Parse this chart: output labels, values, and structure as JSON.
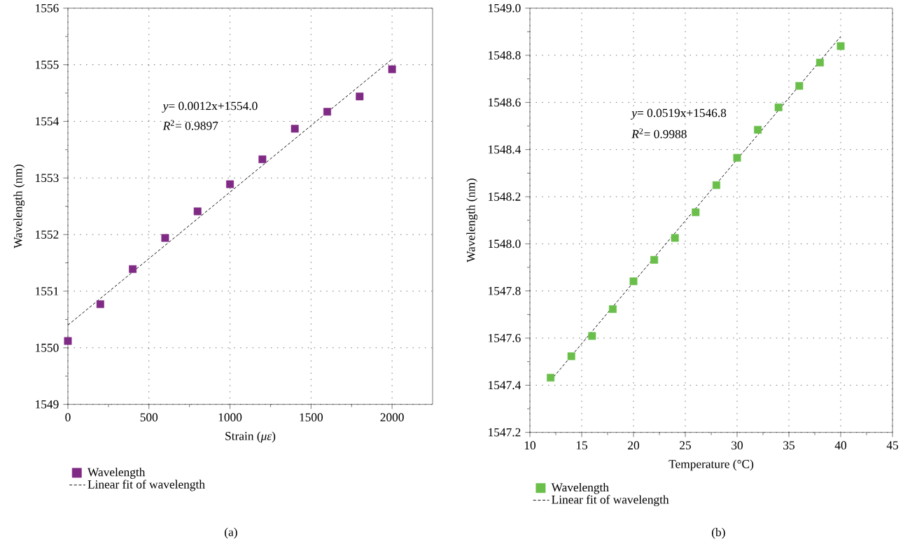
{
  "chart_data": [
    {
      "type": "scatter",
      "xlabel": "Strain (*με*)",
      "ylabel": "Wavelength (nm)",
      "xlim": [
        0,
        2250
      ],
      "ylim": [
        1549,
        1556
      ],
      "xticks": [
        0,
        500,
        1000,
        1500,
        2000
      ],
      "yticks": [
        1549,
        1550,
        1551,
        1552,
        1553,
        1554,
        1555,
        1556
      ],
      "grid": true,
      "legend": "bottom",
      "marker": "square",
      "annotations": [
        "*y*= 0.0012x+1554.0",
        "*R*$^{2}$= 0.9897",
        "(a)"
      ],
      "series": [
        {
          "name": "Wavelength",
          "color": "#7f2a84",
          "x": [
            0,
            200,
            400,
            600,
            800,
            1000,
            1200,
            1400,
            1600,
            1800,
            2000
          ],
          "values": [
            1550.12,
            1550.77,
            1551.39,
            1551.94,
            1552.41,
            1552.89,
            1553.33,
            1553.87,
            1554.17,
            1554.44,
            1554.92
          ]
        },
        {
          "name": "Linear fit of wavelength",
          "type": "line",
          "color": "#000000",
          "line_style": "dashed",
          "marker": "none",
          "x": [
            0,
            2000
          ],
          "values": [
            1550.4,
            1555.1
          ]
        }
      ]
    },
    {
      "type": "scatter",
      "xlabel": "Temperature (°C)",
      "ylabel": "Wavelength (nm)",
      "xlim": [
        10,
        45
      ],
      "ylim": [
        1547.2,
        1549.0
      ],
      "xticks": [
        10,
        15,
        20,
        25,
        30,
        35,
        40,
        45
      ],
      "yticks": [
        {
          "value": 1547.2,
          "label": "1547.2"
        },
        {
          "value": 1547.4,
          "label": "1547.4"
        },
        {
          "value": 1547.6,
          "label": "1547.6"
        },
        {
          "value": 1547.8,
          "label": "1547.8"
        },
        {
          "value": 1548.0,
          "label": "1548.0"
        },
        {
          "value": 1548.2,
          "label": "1548.2"
        },
        {
          "value": 1548.4,
          "label": "1548.4"
        },
        {
          "value": 1548.6,
          "label": "1548.6"
        },
        {
          "value": 1548.8,
          "label": "1548.8"
        },
        {
          "value": 1549.0,
          "label": "1549.0"
        }
      ],
      "grid": true,
      "legend": "bottom",
      "marker": "square",
      "annotations": [
        "*y*= 0.0519x+1546.8",
        "*R*$^{2}$= 0.9988",
        "(b)"
      ],
      "series": [
        {
          "name": "Wavelength",
          "color": "#6abf4b",
          "x": [
            12,
            14,
            16,
            18,
            20,
            22,
            24,
            26,
            28,
            30,
            32,
            34,
            36,
            38,
            40
          ],
          "values": [
            1547.432,
            1547.523,
            1547.609,
            1547.723,
            1547.841,
            1547.932,
            1548.025,
            1548.134,
            1548.249,
            1548.365,
            1548.484,
            1548.579,
            1548.67,
            1548.769,
            1548.839
          ]
        },
        {
          "name": "Linear fit of wavelength",
          "type": "line",
          "color": "#000000",
          "line_style": "dashed",
          "marker": "none",
          "x": [
            12,
            40
          ],
          "values": [
            1547.42,
            1548.88
          ]
        }
      ]
    }
  ]
}
